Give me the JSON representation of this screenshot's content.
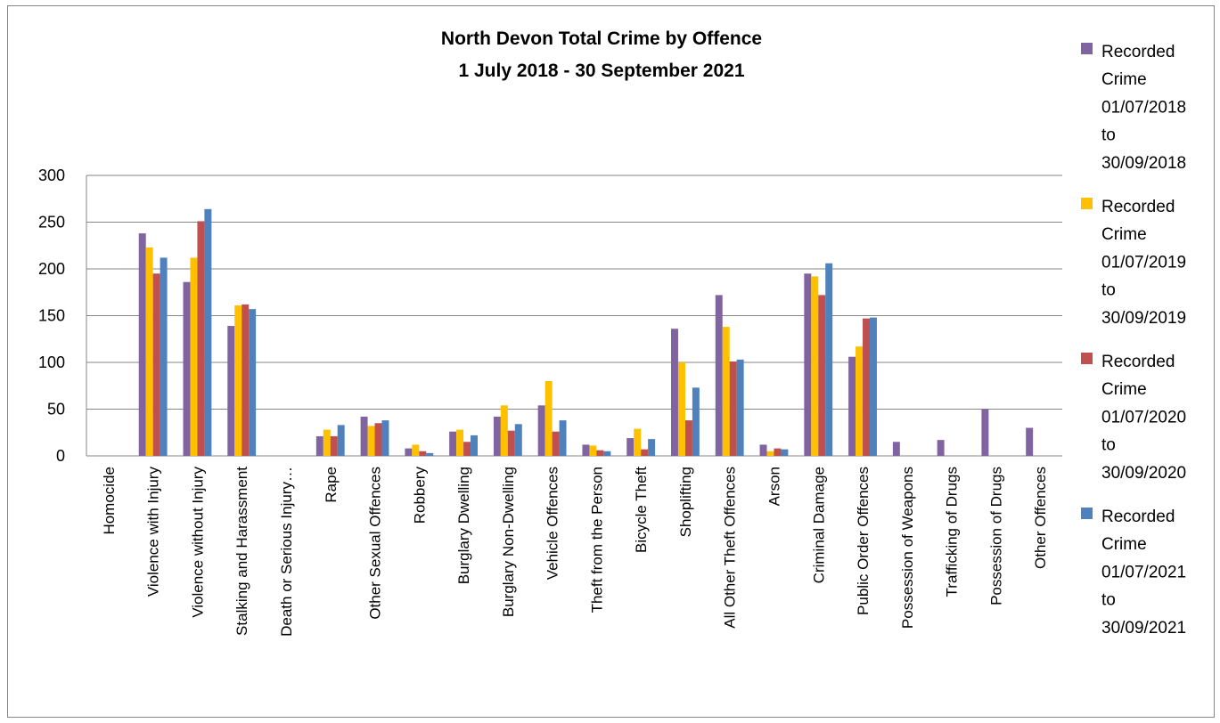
{
  "chart_data": {
    "type": "bar",
    "title": "North Devon Total Crime by Offence",
    "subtitle": "1 July 2018 - 30 September 2021",
    "xlabel": "",
    "ylabel": "",
    "ylim": [
      0,
      300
    ],
    "yticks": [
      0,
      50,
      100,
      150,
      200,
      250,
      300
    ],
    "grid": true,
    "legend_position": "right",
    "categories": [
      "Homocide",
      "Violence with Injury",
      "Violence without Injury",
      "Stalking and Harassment",
      "Death or Serious Injury…",
      "Rape",
      "Other Sexual Offences",
      "Robbery",
      "Burglary Dwelling",
      "Burglary Non-Dwelling",
      "Vehicle Offences",
      "Theft from the Person",
      "Bicycle Theft",
      "Shoplifting",
      "All Other Theft Offences",
      "Arson",
      "Criminal Damage",
      "Public Order Offences",
      "Possession of Weapons",
      "Trafficking of Drugs",
      "Possession of Drugs",
      "Other Offences"
    ],
    "series": [
      {
        "name": "Recorded Crime 01/07/2018 to 30/09/2018",
        "legend_lines": [
          "Recorded",
          "Crime",
          "01/07/2018",
          "to",
          "30/09/2018"
        ],
        "color": "#8064a2",
        "values": [
          0,
          238,
          186,
          139,
          0,
          21,
          42,
          8,
          26,
          42,
          54,
          12,
          19,
          136,
          172,
          12,
          195,
          106,
          15,
          17,
          50,
          30
        ]
      },
      {
        "name": "Recorded Crime 01/07/2019 to 30/09/2019",
        "legend_lines": [
          "Recorded",
          "Crime",
          "01/07/2019",
          "to",
          "30/09/2019"
        ],
        "color": "#ffc000",
        "values": [
          0,
          223,
          212,
          161,
          0,
          28,
          32,
          12,
          28,
          54,
          80,
          11,
          29,
          100,
          138,
          5,
          192,
          117,
          0,
          0,
          0,
          0
        ]
      },
      {
        "name": "Recorded Crime 01/07/2020 to 30/09/2020",
        "legend_lines": [
          "Recorded",
          "Crime",
          "01/07/2020",
          "to",
          "30/09/2020"
        ],
        "color": "#c0504d",
        "values": [
          0,
          195,
          251,
          162,
          0,
          21,
          35,
          5,
          15,
          27,
          26,
          6,
          7,
          38,
          101,
          8,
          172,
          147,
          0,
          0,
          0,
          0
        ]
      },
      {
        "name": "Recorded Crime 01/07/2021 to 30/09/2021",
        "legend_lines": [
          "Recorded",
          "Crime",
          "01/07/2021",
          "to",
          "30/09/2021"
        ],
        "color": "#4f81bd",
        "values": [
          0,
          212,
          264,
          157,
          0,
          33,
          38,
          3,
          22,
          34,
          38,
          5,
          18,
          73,
          103,
          7,
          206,
          148,
          0,
          0,
          0,
          0
        ]
      }
    ]
  }
}
